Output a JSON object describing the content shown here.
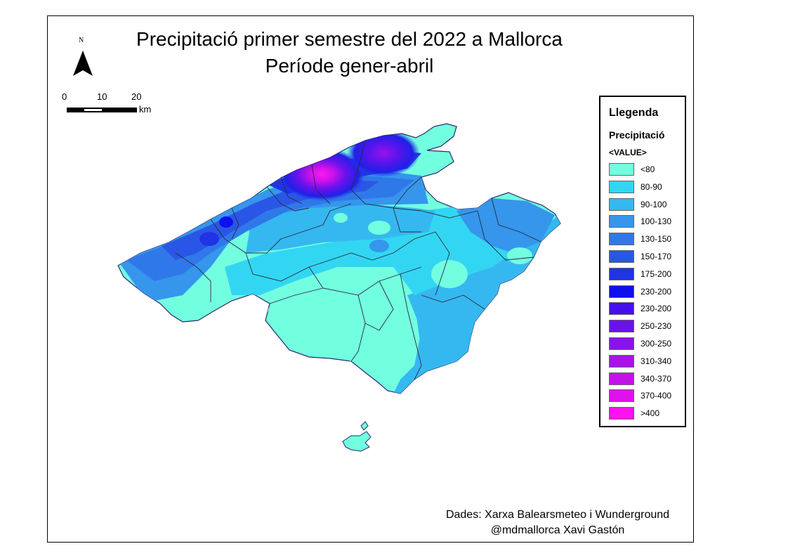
{
  "map": {
    "title": "Precipitació primer semestre del 2022 a Mallorca",
    "subtitle": "Període gener-abril",
    "north_label": "N",
    "scale": {
      "ticks": [
        "0",
        "10",
        "20"
      ],
      "unit": "km"
    },
    "credits": {
      "line1": "Dades: Xarxa Balearsmeteo i Wunderground",
      "line2": "@mdmallorca Xavi Gastón"
    }
  },
  "legend": {
    "title": "Llegenda",
    "subtitle": "Precipitació",
    "field": "<VALUE>",
    "items": [
      {
        "label": "<80",
        "color": "#72ffe0"
      },
      {
        "label": "80-90",
        "color": "#33d6f2"
      },
      {
        "label": "90-100",
        "color": "#35b8f0"
      },
      {
        "label": "100-130",
        "color": "#3596ec"
      },
      {
        "label": "130-150",
        "color": "#2f78ea"
      },
      {
        "label": "150-170",
        "color": "#2a56e6"
      },
      {
        "label": "175-200",
        "color": "#1f34e4"
      },
      {
        "label": "230-200",
        "color": "#0f10ee"
      },
      {
        "label": "230-200",
        "color": "#4411ee"
      },
      {
        "label": "250-230",
        "color": "#6a12ec"
      },
      {
        "label": "300-250",
        "color": "#8c12ea"
      },
      {
        "label": "310-340",
        "color": "#aa12ea"
      },
      {
        "label": "340-370",
        "color": "#c312e8"
      },
      {
        "label": ">400",
        "color": "#ff12f0",
        "slot": 14
      },
      {
        "label": "370-400",
        "color": "#de12ea",
        "slot": 13
      }
    ]
  }
}
